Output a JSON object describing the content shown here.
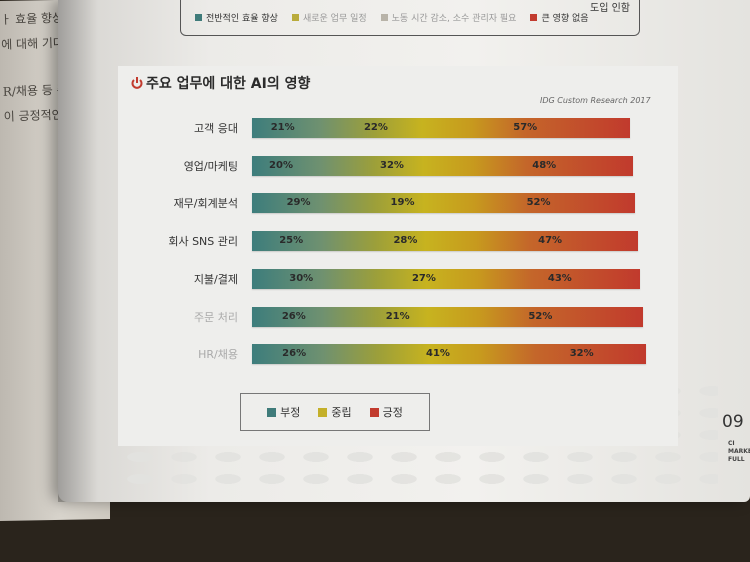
{
  "left_page": {
    "lines": [
      "ㅏ 효율 향상을 기",
      "에 대해 기대하는",
      "R/채용 등 주요",
      "이 긍정적인 영향"
    ]
  },
  "top_legend": {
    "items": [
      {
        "label": "전반적인 효율 향상",
        "color": "#3f7b7a"
      },
      {
        "label": "새로운 업무 일정",
        "color": "#b9ab3c"
      },
      {
        "label": "노동 시간 감소, 소수 관리자 필요",
        "color": "#b8b3a8"
      },
      {
        "label": "큰 영향 없음",
        "color": "#c23b2e"
      }
    ],
    "right_text": "도입 인함"
  },
  "chart_data": {
    "type": "bar",
    "stacked": true,
    "orientation": "horizontal",
    "title": "주요 업무에 대한 AI의 영향",
    "source": "IDG Custom Research 2017",
    "categories": [
      "고객 응대",
      "영업/마케팅",
      "재무/회계분석",
      "회사 SNS 관리",
      "지불/결제",
      "주문 처리",
      "HR/채용"
    ],
    "series": [
      {
        "name": "부정",
        "color": "#3f7b7a",
        "values": [
          21,
          20,
          29,
          25,
          30,
          26,
          26
        ]
      },
      {
        "name": "중립",
        "color": "#c4b02a",
        "values": [
          22,
          32,
          19,
          28,
          27,
          21,
          41
        ]
      },
      {
        "name": "긍정",
        "color": "#c23b2e",
        "values": [
          57,
          48,
          52,
          47,
          43,
          52,
          32
        ]
      }
    ],
    "value_suffix": "%",
    "xlim": [
      0,
      100
    ],
    "legend_position": "bottom-left",
    "grid": false
  },
  "page_number": "09",
  "side_text": [
    "CI",
    "MARKE",
    "FULL"
  ]
}
